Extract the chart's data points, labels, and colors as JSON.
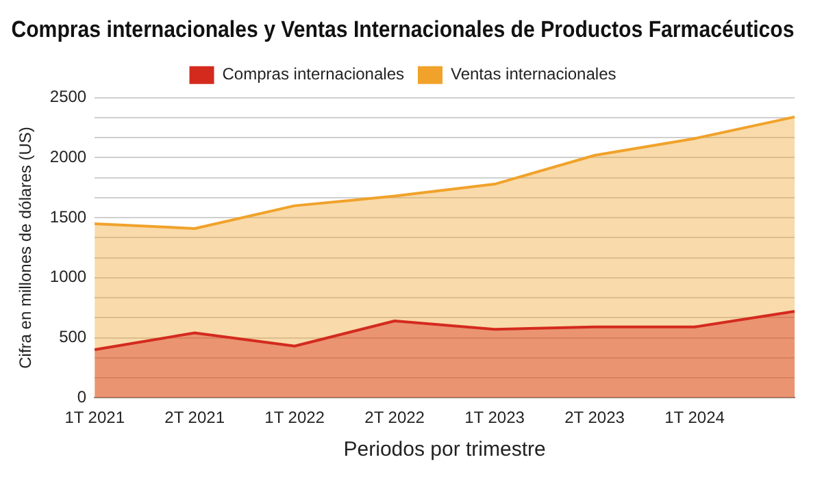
{
  "chart_data": {
    "type": "area",
    "title": "Compras internacionales y Ventas Internacionales de Productos Farmacéuticos",
    "xlabel": "Periodos por trimestre",
    "ylabel": "Cifra en millones de dólares (US)",
    "categories": [
      "1T 2021",
      "2T 2021",
      "1T 2022",
      "2T 2022",
      "1T 2023",
      "2T 2023",
      "1T 2024",
      null
    ],
    "series": [
      {
        "name": "Compras internacionales",
        "color": "#d42a1e",
        "values": [
          400,
          540,
          430,
          640,
          570,
          590,
          590,
          720
        ]
      },
      {
        "name": "Ventas internacionales",
        "color": "#f0a22a",
        "values": [
          1450,
          1410,
          1600,
          1680,
          1780,
          2020,
          2160,
          2340
        ]
      }
    ],
    "ylim": [
      0,
      2500
    ],
    "yticks": [
      0,
      {
        "value": 166.7,
        "label": null
      },
      {
        "value": 333.3,
        "label": null
      },
      500,
      {
        "value": 666.7,
        "label": null
      },
      {
        "value": 833.3,
        "label": null
      },
      1000,
      {
        "value": 1166.7,
        "label": null
      },
      {
        "value": 1333.3,
        "label": null
      },
      1500,
      {
        "value": 1666.7,
        "label": null
      },
      {
        "value": 1833.3,
        "label": null
      },
      2000,
      {
        "value": 2166.7,
        "label": null
      },
      {
        "value": 2333.3,
        "label": null
      },
      2500
    ],
    "grid": "y",
    "legend": "top"
  }
}
